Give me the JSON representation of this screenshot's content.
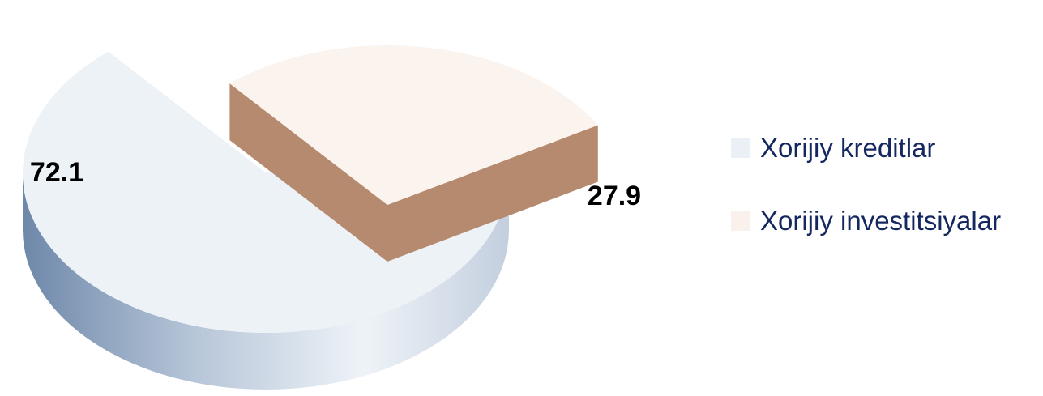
{
  "colors": {
    "label_text": "#000000",
    "legend_text": "#14285f"
  },
  "chart_data": {
    "type": "pie",
    "style": "3d-exploded",
    "title": "",
    "legend_position": "right",
    "slices": [
      {
        "name": "Xorijiy kreditlar",
        "value": 72.1,
        "label": "72.1",
        "top_color": "#edf2f7",
        "side_color": "#b5c4d7",
        "cut_color": "#9aabc0",
        "legend_swatch_color": "#eaf0f6"
      },
      {
        "name": "Xorijiy investitsiyalar",
        "value": 27.9,
        "label": "27.9",
        "top_color": "#fbf3ee",
        "side_color": "#cca58d",
        "cut_color": "#b68a6f",
        "legend_swatch_color": "#fbf1ec"
      }
    ]
  }
}
